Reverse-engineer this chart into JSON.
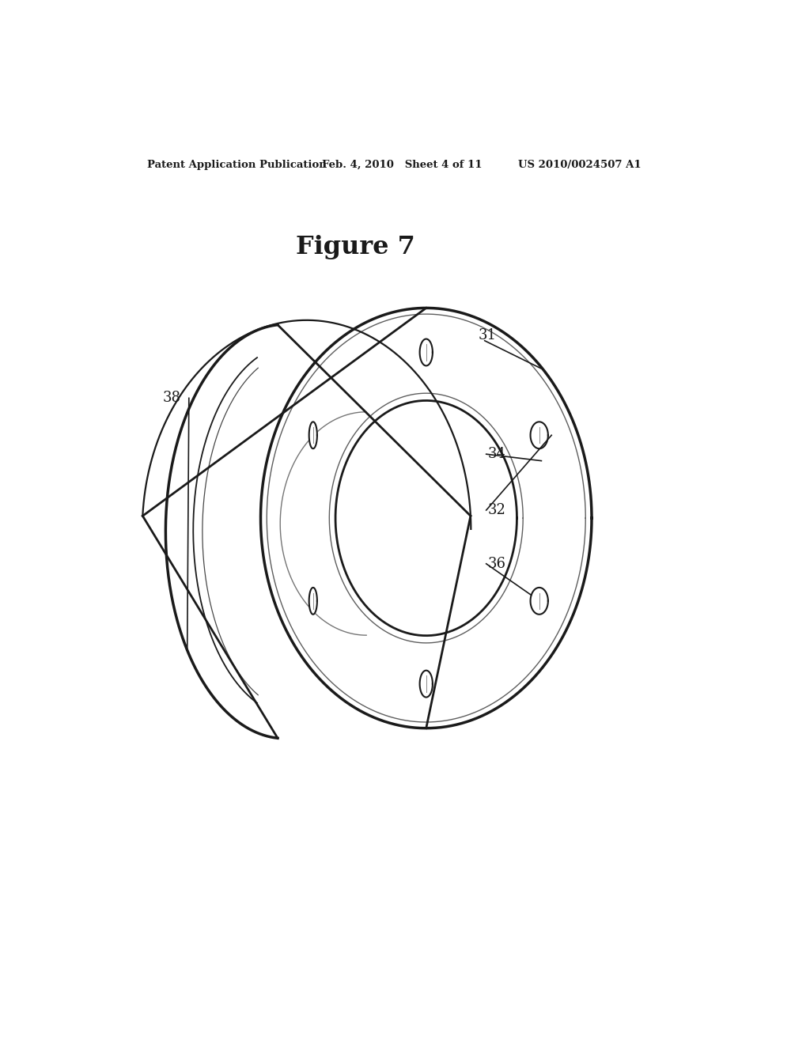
{
  "title": "Figure 7",
  "header_left": "Patent Application Publication",
  "header_mid": "Feb. 4, 2010   Sheet 4 of 11",
  "header_right": "US 2010/0024507 A1",
  "bg_color": "#ffffff",
  "line_color": "#1a1a1a",
  "label_31": "31",
  "label_32": "32",
  "label_34": "34",
  "label_36": "36",
  "label_38": "38",
  "fig_w": 1024,
  "fig_h": 1320
}
